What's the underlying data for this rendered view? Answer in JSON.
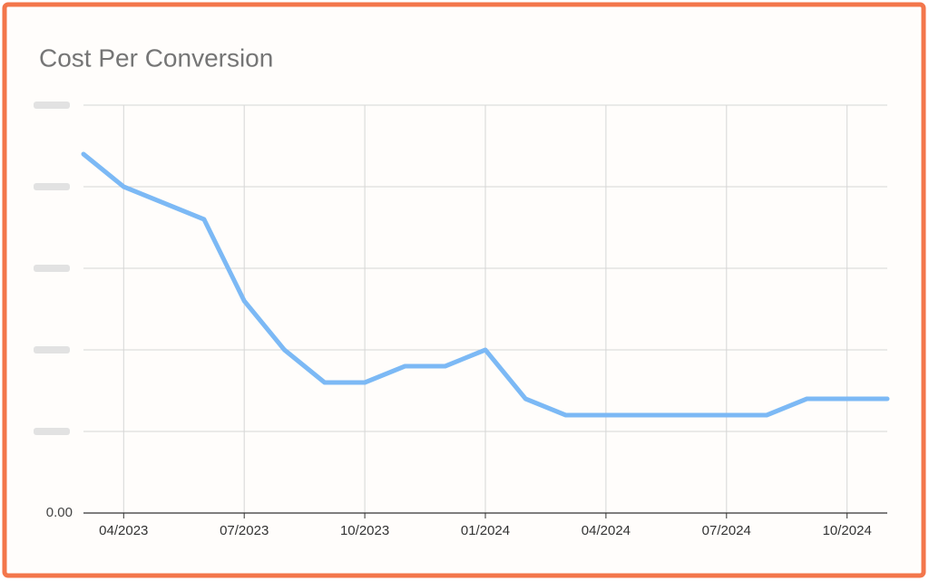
{
  "chart_data": {
    "type": "line",
    "title": "Cost Per Conversion",
    "categories": [
      null,
      "04/2023",
      null,
      null,
      "07/2023",
      null,
      null,
      "10/2023",
      null,
      null,
      "01/2024",
      null,
      null,
      "04/2024",
      null,
      null,
      "07/2024",
      null,
      null,
      "10/2024",
      null
    ],
    "values": [
      4.4,
      4.0,
      3.8,
      3.6,
      2.6,
      2.0,
      1.6,
      1.6,
      1.8,
      1.8,
      2.0,
      1.4,
      1.2,
      1.2,
      1.2,
      1.2,
      1.2,
      1.2,
      1.4,
      1.4,
      1.4
    ],
    "color": "#7cb9f5",
    "ylim": [
      0,
      5
    ],
    "yticks": [
      {
        "value": 0,
        "label": "0.00"
      },
      1,
      2,
      3,
      4,
      5
    ],
    "grid": true
  }
}
